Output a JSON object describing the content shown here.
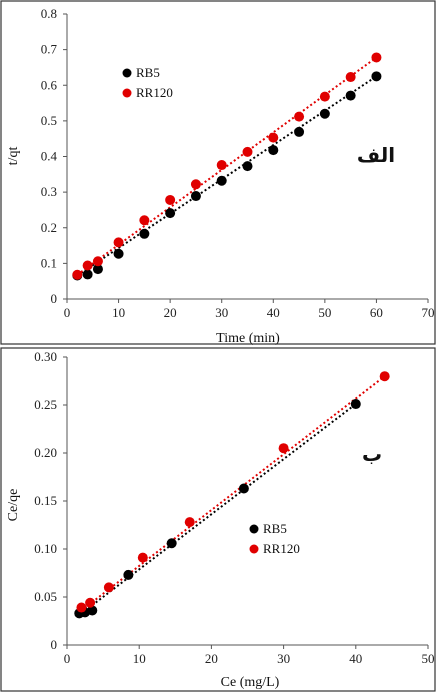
{
  "chart_data": [
    {
      "type": "scatter",
      "panel_label": "الف",
      "xlabel": "Time (min)",
      "ylabel": "t/qt",
      "xlim": [
        0,
        70
      ],
      "ylim": [
        0,
        0.8
      ],
      "xticks": [
        0,
        10,
        20,
        30,
        40,
        50,
        60,
        70
      ],
      "yticks": [
        0,
        0.1,
        0.2,
        0.3,
        0.4,
        0.5,
        0.6,
        0.7,
        0.8
      ],
      "grid": false,
      "legend_position": "top-left",
      "series": [
        {
          "name": "RB5",
          "color": "#000000",
          "x": [
            2,
            4,
            6,
            10,
            15,
            20,
            25,
            30,
            35,
            40,
            45,
            50,
            55,
            60
          ],
          "y": [
            0.066,
            0.069,
            0.084,
            0.127,
            0.183,
            0.241,
            0.289,
            0.332,
            0.373,
            0.418,
            0.469,
            0.52,
            0.571,
            0.625
          ],
          "trendline": [
            [
              2,
              0.066
            ],
            [
              60,
              0.625
            ]
          ]
        },
        {
          "name": "RR120",
          "color": "#e00000",
          "x": [
            2,
            4,
            6,
            10,
            15,
            20,
            25,
            30,
            35,
            40,
            45,
            50,
            55,
            60
          ],
          "y": [
            0.068,
            0.094,
            0.106,
            0.159,
            0.221,
            0.278,
            0.322,
            0.376,
            0.413,
            0.453,
            0.512,
            0.568,
            0.623,
            0.678
          ],
          "trendline": [
            [
              2,
              0.068
            ],
            [
              60,
              0.678
            ]
          ]
        }
      ]
    },
    {
      "type": "scatter",
      "panel_label": "ب",
      "xlabel": "Ce (mg/L)",
      "ylabel": "Ce/qe",
      "xlim": [
        0,
        50
      ],
      "ylim": [
        0,
        0.3
      ],
      "xticks": [
        0,
        10,
        20,
        30,
        40,
        50
      ],
      "yticks": [
        0,
        0.05,
        0.1,
        0.15,
        0.2,
        0.25,
        0.3
      ],
      "grid": false,
      "legend_position": "center-right",
      "series": [
        {
          "name": "RB5",
          "color": "#000000",
          "x": [
            1.7,
            2.5,
            3.5,
            8.5,
            14.5,
            24.5,
            40
          ],
          "y": [
            0.033,
            0.034,
            0.036,
            0.073,
            0.106,
            0.163,
            0.251
          ],
          "trendline": [
            [
              1.5,
              0.03
            ],
            [
              40,
              0.251
            ]
          ]
        },
        {
          "name": "RR120",
          "color": "#e00000",
          "x": [
            2,
            3.2,
            5.8,
            10.5,
            17,
            30,
            44
          ],
          "y": [
            0.039,
            0.044,
            0.06,
            0.091,
            0.128,
            0.205,
            0.28
          ],
          "trendline": [
            [
              1.5,
              0.033
            ],
            [
              44,
              0.28
            ]
          ]
        }
      ]
    }
  ]
}
